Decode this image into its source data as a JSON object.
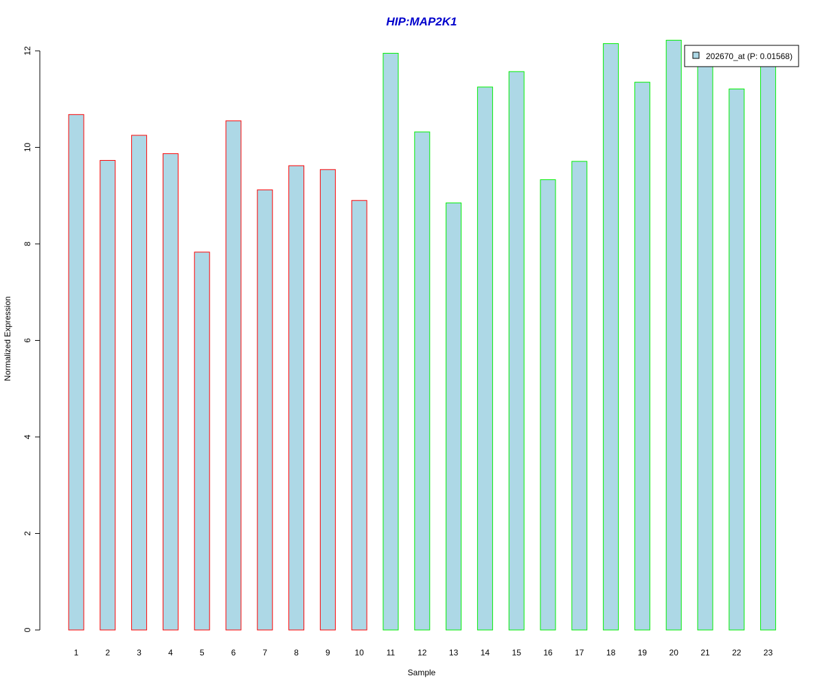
{
  "chart_data": {
    "type": "bar",
    "title": "HIP:MAP2K1",
    "xlabel": "Sample",
    "ylabel": "Normalized Expression",
    "ylim": [
      0,
      12.2
    ],
    "yticks": [
      "0",
      "2",
      "4",
      "6",
      "8",
      "10",
      "12"
    ],
    "categories": [
      "1",
      "2",
      "3",
      "4",
      "5",
      "6",
      "7",
      "8",
      "9",
      "10",
      "11",
      "12",
      "13",
      "14",
      "15",
      "16",
      "17",
      "18",
      "19",
      "20",
      "21",
      "22",
      "23"
    ],
    "series": [
      {
        "name": "202670_at (P: 0.01568)",
        "fill_color": "#add8e6",
        "values": [
          10.68,
          9.73,
          10.25,
          9.87,
          7.83,
          10.55,
          9.12,
          9.62,
          9.54,
          8.9,
          11.95,
          10.32,
          8.85,
          11.25,
          11.57,
          9.33,
          9.71,
          12.15,
          11.35,
          12.22,
          11.72,
          11.21,
          11.72
        ]
      }
    ],
    "bar_border_colors": [
      "#ff0000",
      "#ff0000",
      "#ff0000",
      "#ff0000",
      "#ff0000",
      "#ff0000",
      "#ff0000",
      "#ff0000",
      "#ff0000",
      "#ff0000",
      "#00ee00",
      "#00ee00",
      "#00ee00",
      "#00ee00",
      "#00ee00",
      "#00ee00",
      "#00ee00",
      "#00ee00",
      "#00ee00",
      "#00ee00",
      "#00ee00",
      "#00ee00",
      "#00ee00"
    ],
    "title_color": "#0000cc",
    "legend_position": "top-right",
    "grid": false
  }
}
